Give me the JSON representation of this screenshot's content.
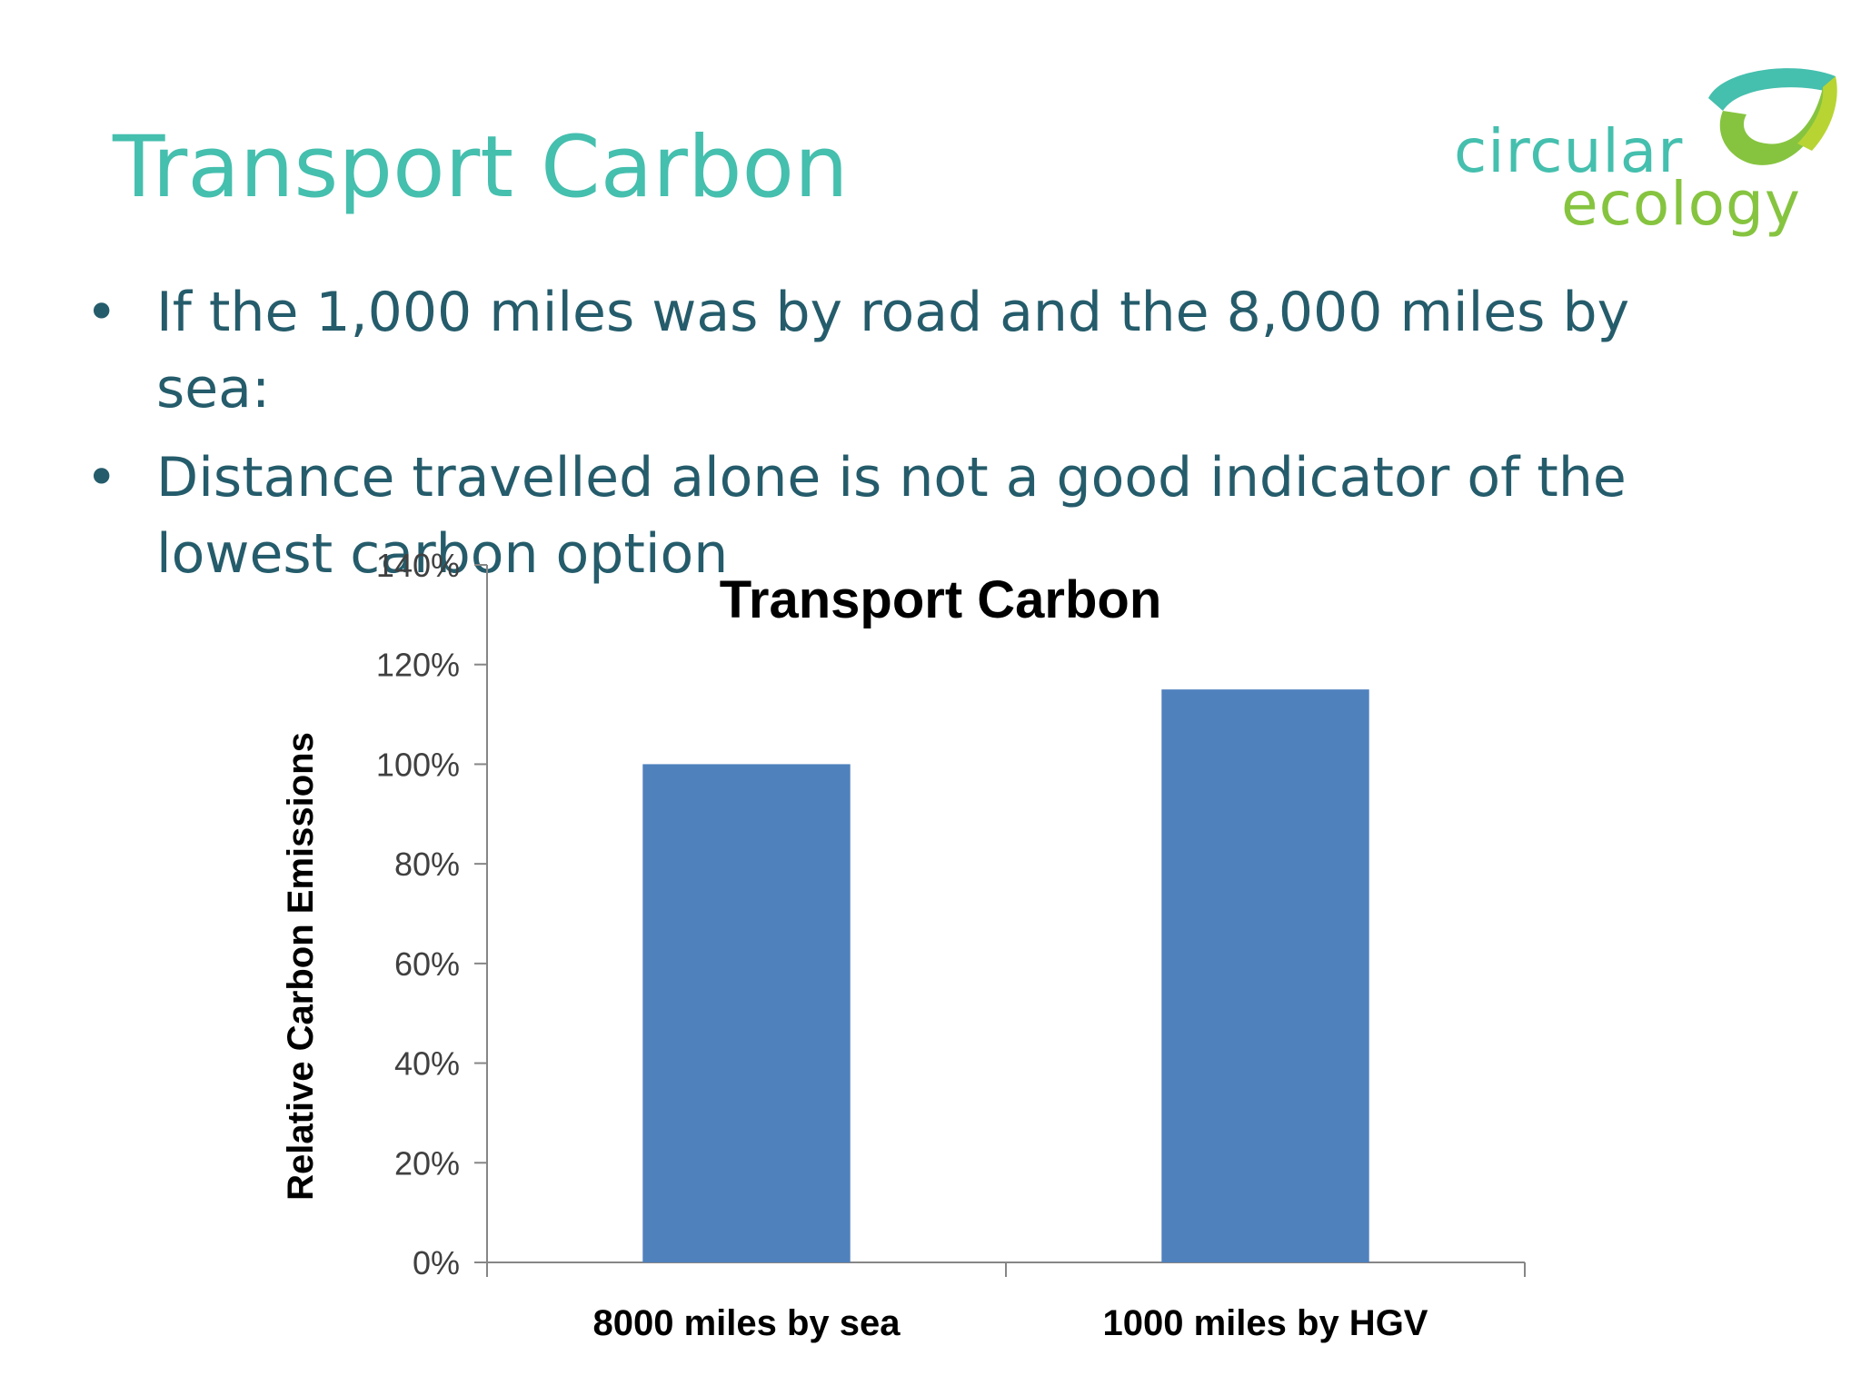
{
  "slide": {
    "title": "Transport Carbon",
    "bullets": [
      "If the 1,000 miles was by road and the 8,000 miles by sea:",
      "Distance travelled alone is not a good indicator of the lowest carbon option"
    ],
    "bullet_symbol": "•"
  },
  "logo": {
    "word1": "circular",
    "word2": "ecology"
  },
  "colors": {
    "title": "#45bfae",
    "bullet_text": "#255c6b",
    "bar": "#4f81bd",
    "logo_teal": "#45bfae",
    "logo_green": "#86c440"
  },
  "chart_data": {
    "type": "bar",
    "title": "Transport Carbon",
    "ylabel": "Relative Carbon Emissions",
    "xlabel": "",
    "categories": [
      "8000 miles by sea",
      "1000 miles by HGV"
    ],
    "values": [
      100,
      115
    ],
    "ylim": [
      0,
      140
    ],
    "yticks": [
      0,
      20,
      40,
      60,
      80,
      100,
      120,
      140
    ],
    "ytick_labels": [
      "0%",
      "20%",
      "40%",
      "60%",
      "80%",
      "100%",
      "120%",
      "140%"
    ],
    "grid": false,
    "legend": "none"
  }
}
